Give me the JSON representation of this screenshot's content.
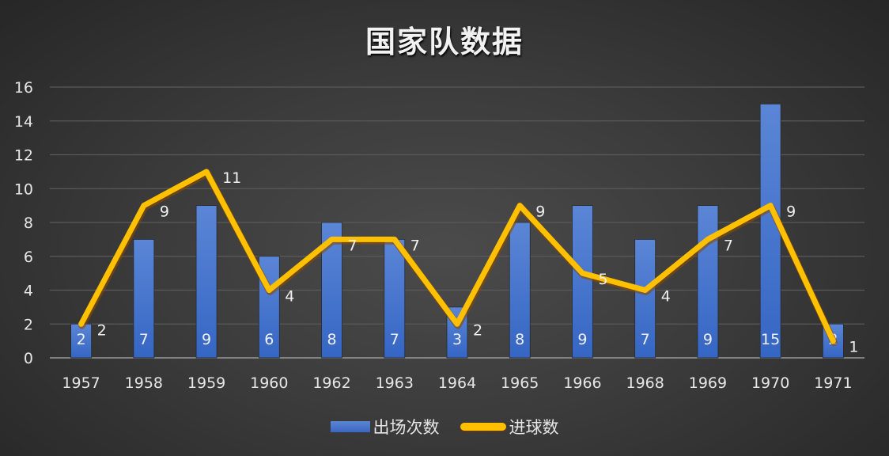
{
  "chart_data": {
    "type": "bar+line",
    "title": "国家队数据",
    "xlabel": "",
    "ylabel": "",
    "ylim": [
      0,
      16
    ],
    "yticks": [
      0,
      2,
      4,
      6,
      8,
      10,
      12,
      14,
      16
    ],
    "grid": true,
    "legend_position": "bottom",
    "categories": [
      "1957",
      "1958",
      "1959",
      "1960",
      "1962",
      "1963",
      "1964",
      "1965",
      "1966",
      "1968",
      "1969",
      "1970",
      "1971"
    ],
    "series": [
      {
        "name": "出场次数",
        "type": "bar",
        "color": "#4472C4",
        "values": [
          2,
          7,
          9,
          6,
          8,
          7,
          3,
          8,
          9,
          7,
          9,
          15,
          2
        ]
      },
      {
        "name": "进球数",
        "type": "line",
        "color": "#FFC000",
        "values": [
          2,
          9,
          11,
          4,
          7,
          7,
          2,
          9,
          5,
          4,
          7,
          9,
          1
        ]
      }
    ]
  },
  "legend": {
    "bar_label": "出场次数",
    "line_label": "进球数"
  },
  "colors": {
    "bar": "#4472C4",
    "line": "#FFC000",
    "grid": "#5a5a5a",
    "text": "#e6e6e6"
  }
}
